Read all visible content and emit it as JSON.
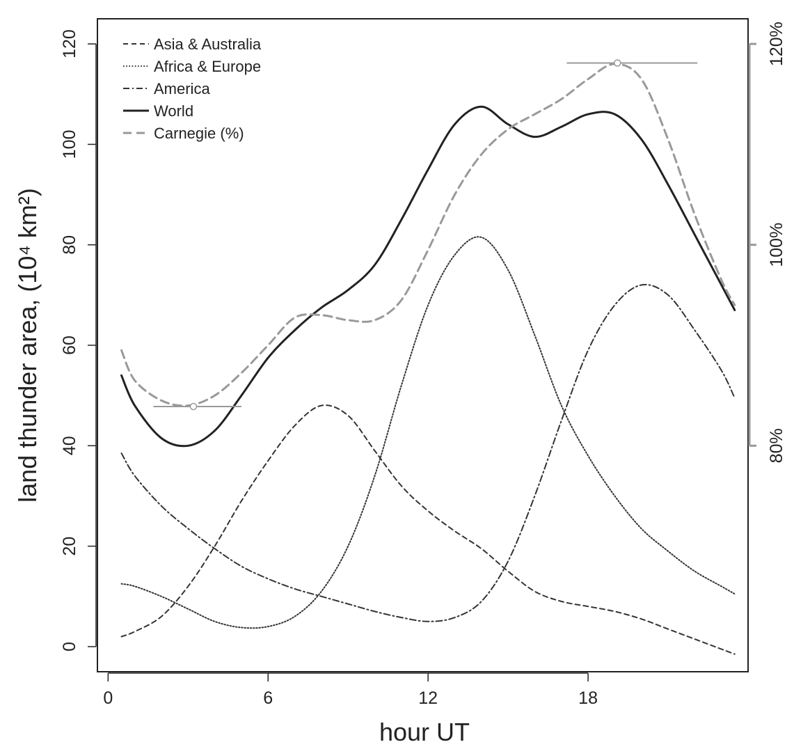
{
  "chart_data": {
    "type": "line",
    "title": "",
    "xlabel": "hour UT",
    "ylabel": "land thunder area, (10⁴ km²)",
    "xlim": [
      -0.4,
      24.0
    ],
    "ylim": [
      -5,
      125
    ],
    "x_ticks": [
      0,
      6,
      12,
      18
    ],
    "x_tick_labels": [
      "0",
      "6",
      "12",
      "18"
    ],
    "y_ticks": [
      0,
      20,
      40,
      60,
      80,
      100,
      120
    ],
    "y_tick_labels": [
      "0",
      "20",
      "40",
      "60",
      "80",
      "100",
      "120"
    ],
    "y2_ticks": [
      40,
      80,
      120
    ],
    "y2_tick_labels": [
      "80%",
      "100%",
      "120%"
    ],
    "grid": false,
    "legend_position": "top-left",
    "series": [
      {
        "name": "Asia & Australia",
        "style": "dashed",
        "color": "#333333",
        "x": [
          0.5,
          1,
          2,
          3,
          4,
          5,
          6,
          7,
          8,
          9,
          10,
          11,
          12,
          13,
          14,
          15,
          16,
          17,
          18,
          19,
          20,
          21,
          22,
          23,
          23.5
        ],
        "y": [
          2,
          3,
          6,
          12,
          20,
          29,
          37,
          44,
          48,
          46,
          39,
          32,
          27,
          23,
          19.5,
          15,
          11,
          9,
          8,
          7,
          5.5,
          3.5,
          1.5,
          -0.5,
          -1.5
        ]
      },
      {
        "name": "Africa & Europe",
        "style": "dotted",
        "color": "#333333",
        "x": [
          0.5,
          1,
          2,
          3,
          4,
          5,
          6,
          7,
          8,
          9,
          10,
          11,
          12,
          13,
          14,
          15,
          16,
          17,
          18,
          19,
          20,
          21,
          22,
          23,
          23.5
        ],
        "y": [
          12.5,
          12,
          10,
          7.5,
          5,
          3.8,
          4,
          6,
          11,
          20,
          34,
          52,
          68,
          78,
          81.5,
          75,
          62,
          48,
          38,
          30,
          23.5,
          19,
          15,
          12,
          10.5
        ]
      },
      {
        "name": "America",
        "style": "dashdot",
        "color": "#333333",
        "x": [
          0.5,
          1,
          2,
          3,
          4,
          5,
          6,
          7,
          8,
          9,
          10,
          11,
          12,
          13,
          14,
          15,
          16,
          17,
          18,
          19,
          20,
          21,
          22,
          23,
          23.5
        ],
        "y": [
          38.5,
          34,
          28,
          23.5,
          19.5,
          16,
          13.5,
          11.5,
          10,
          8.5,
          7,
          5.8,
          5,
          5.8,
          9,
          17,
          30,
          45,
          59,
          68,
          72,
          70,
          63,
          55,
          49.5
        ]
      },
      {
        "name": "World",
        "style": "solid",
        "color": "#222222",
        "x": [
          0.5,
          1,
          2,
          3,
          4,
          5,
          6,
          7,
          8,
          9,
          10,
          11,
          12,
          13,
          14,
          15,
          16,
          17,
          18,
          19,
          20,
          21,
          22,
          23,
          23.5
        ],
        "y": [
          54,
          48,
          41.5,
          40,
          43,
          50,
          57.5,
          63,
          67.5,
          71,
          76,
          85,
          95,
          104,
          107.5,
          104,
          101.5,
          103.5,
          106,
          106,
          101,
          92,
          82,
          72,
          67
        ]
      },
      {
        "name": "Carnegie (%)",
        "style": "longdash",
        "color": "#999999",
        "x": [
          0.5,
          1,
          2,
          3,
          4,
          5,
          6,
          7,
          8,
          9,
          10,
          11,
          12,
          13,
          14,
          15,
          16,
          17,
          18,
          19,
          20,
          21,
          22,
          23,
          23.5
        ],
        "y": [
          59,
          53,
          49,
          48,
          50,
          54.5,
          60,
          65.5,
          66,
          65,
          65,
          69,
          79,
          90,
          98,
          103,
          106,
          109,
          113,
          116,
          113,
          101,
          86,
          73,
          68
        ]
      }
    ],
    "annotations": [
      {
        "type": "range-marker",
        "center": [
          3.2,
          47.8
        ],
        "x_range": [
          1.7,
          5.0
        ],
        "color": "#999999"
      },
      {
        "type": "range-marker",
        "center": [
          19.1,
          116.2
        ],
        "x_range": [
          17.2,
          22.1
        ],
        "color": "#999999"
      }
    ]
  }
}
